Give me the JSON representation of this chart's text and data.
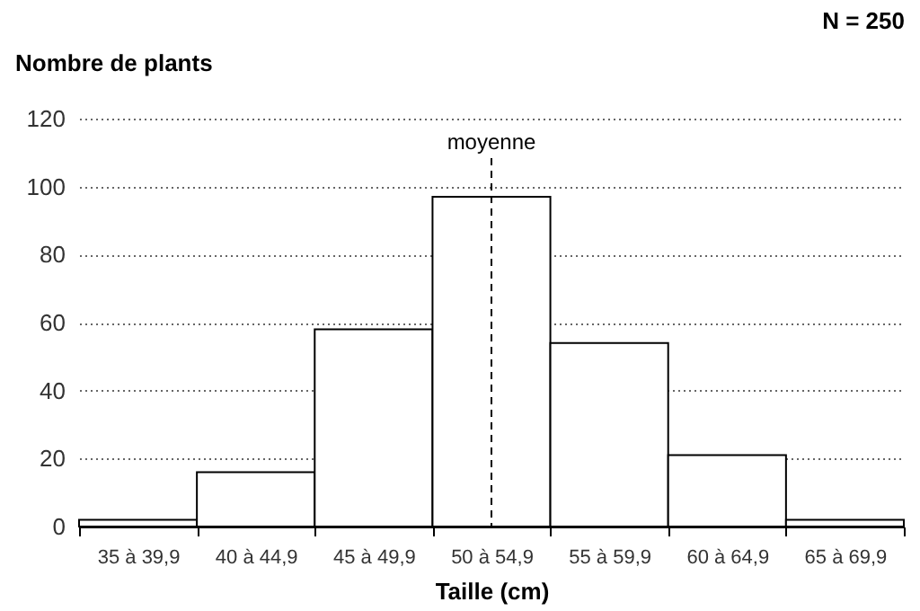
{
  "chart_data": {
    "type": "bar",
    "ylabel": "Nombre de plants",
    "xlabel": "Taille (cm)",
    "annotations": [
      "N = 250"
    ],
    "categories": [
      "35 à 39,9",
      "40 à 44,9",
      "45 à 49,9",
      "50 à 54,9",
      "55 à 59,9",
      "60 à 64,9",
      "65 à 69,9"
    ],
    "values": [
      2,
      16,
      58,
      97,
      54,
      21,
      2
    ],
    "color": "#ffffff",
    "ylim": [
      0,
      120
    ],
    "yticks": [
      0,
      20,
      40,
      60,
      80,
      100,
      120
    ],
    "grid": "y",
    "ref_lines": [
      {
        "axis": "x",
        "value": "50 à 54,9",
        "label": "moyenne",
        "line_style": "dashed",
        "color": "#000000"
      }
    ]
  }
}
